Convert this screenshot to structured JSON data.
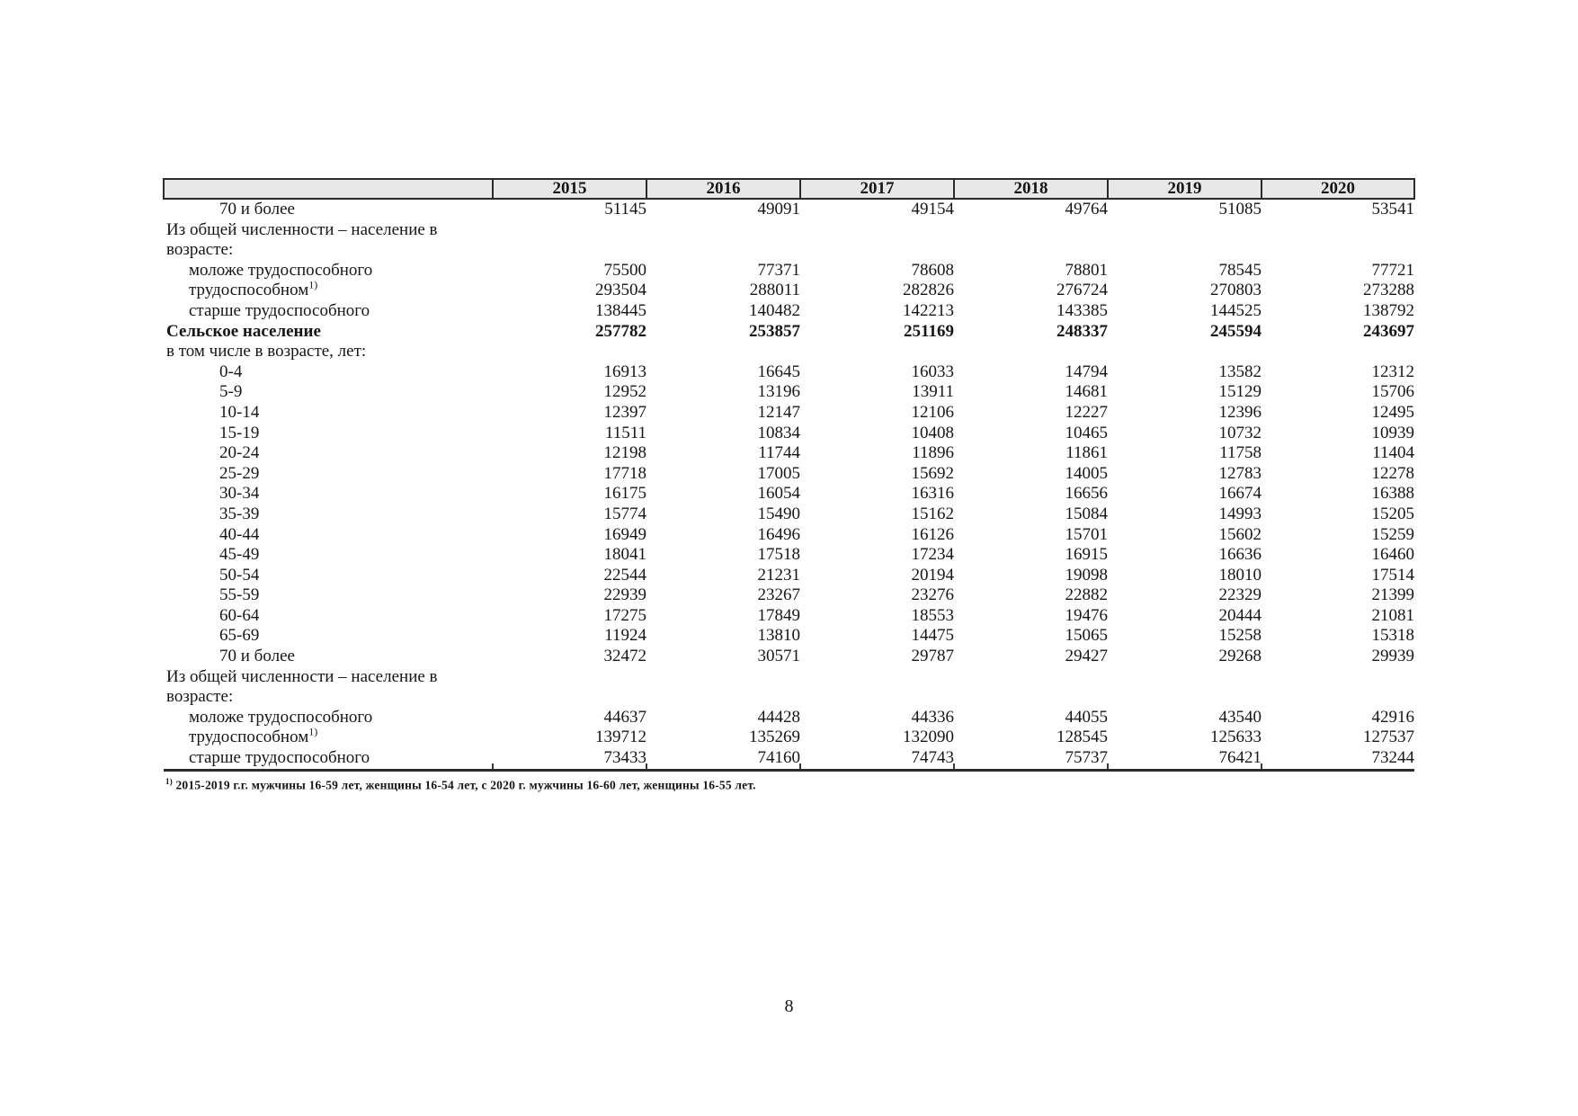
{
  "table": {
    "year_headers": [
      "2015",
      "2016",
      "2017",
      "2018",
      "2019",
      "2020"
    ],
    "rows": [
      {
        "label": "70 и более",
        "indent": 3,
        "bold": false,
        "sup": "",
        "values": [
          "51145",
          "49091",
          "49154",
          "49764",
          "51085",
          "53541"
        ]
      },
      {
        "label": "Из общей численности – население в",
        "indent": 1,
        "bold": false,
        "sup": "",
        "values": []
      },
      {
        "label": "возрасте:",
        "indent": 1,
        "bold": false,
        "sup": "",
        "values": []
      },
      {
        "label": "моложе трудоспособного",
        "indent": 2,
        "bold": false,
        "sup": "",
        "values": [
          "75500",
          "77371",
          "78608",
          "78801",
          "78545",
          "77721"
        ]
      },
      {
        "label": "трудоспособном",
        "indent": 2,
        "bold": false,
        "sup": "1)",
        "values": [
          "293504",
          "288011",
          "282826",
          "276724",
          "270803",
          "273288"
        ]
      },
      {
        "label": "старше трудоспособного",
        "indent": 2,
        "bold": false,
        "sup": "",
        "values": [
          "138445",
          "140482",
          "142213",
          "143385",
          "144525",
          "138792"
        ]
      },
      {
        "label": "Сельское население",
        "indent": 1,
        "bold": true,
        "sup": "",
        "values": [
          "257782",
          "253857",
          "251169",
          "248337",
          "245594",
          "243697"
        ]
      },
      {
        "label": "в том числе в возрасте, лет:",
        "indent": 1,
        "bold": false,
        "sup": "",
        "values": []
      },
      {
        "label": "0-4",
        "indent": 3,
        "bold": false,
        "sup": "",
        "values": [
          "16913",
          "16645",
          "16033",
          "14794",
          "13582",
          "12312"
        ]
      },
      {
        "label": "5-9",
        "indent": 3,
        "bold": false,
        "sup": "",
        "values": [
          "12952",
          "13196",
          "13911",
          "14681",
          "15129",
          "15706"
        ]
      },
      {
        "label": "10-14",
        "indent": 3,
        "bold": false,
        "sup": "",
        "values": [
          "12397",
          "12147",
          "12106",
          "12227",
          "12396",
          "12495"
        ]
      },
      {
        "label": "15-19",
        "indent": 3,
        "bold": false,
        "sup": "",
        "values": [
          "11511",
          "10834",
          "10408",
          "10465",
          "10732",
          "10939"
        ]
      },
      {
        "label": "20-24",
        "indent": 3,
        "bold": false,
        "sup": "",
        "values": [
          "12198",
          "11744",
          "11896",
          "11861",
          "11758",
          "11404"
        ]
      },
      {
        "label": "25-29",
        "indent": 3,
        "bold": false,
        "sup": "",
        "values": [
          "17718",
          "17005",
          "15692",
          "14005",
          "12783",
          "12278"
        ]
      },
      {
        "label": "30-34",
        "indent": 3,
        "bold": false,
        "sup": "",
        "values": [
          "16175",
          "16054",
          "16316",
          "16656",
          "16674",
          "16388"
        ]
      },
      {
        "label": "35-39",
        "indent": 3,
        "bold": false,
        "sup": "",
        "values": [
          "15774",
          "15490",
          "15162",
          "15084",
          "14993",
          "15205"
        ]
      },
      {
        "label": "40-44",
        "indent": 3,
        "bold": false,
        "sup": "",
        "values": [
          "16949",
          "16496",
          "16126",
          "15701",
          "15602",
          "15259"
        ]
      },
      {
        "label": "45-49",
        "indent": 3,
        "bold": false,
        "sup": "",
        "values": [
          "18041",
          "17518",
          "17234",
          "16915",
          "16636",
          "16460"
        ]
      },
      {
        "label": "50-54",
        "indent": 3,
        "bold": false,
        "sup": "",
        "values": [
          "22544",
          "21231",
          "20194",
          "19098",
          "18010",
          "17514"
        ]
      },
      {
        "label": "55-59",
        "indent": 3,
        "bold": false,
        "sup": "",
        "values": [
          "22939",
          "23267",
          "23276",
          "22882",
          "22329",
          "21399"
        ]
      },
      {
        "label": "60-64",
        "indent": 3,
        "bold": false,
        "sup": "",
        "values": [
          "17275",
          "17849",
          "18553",
          "19476",
          "20444",
          "21081"
        ]
      },
      {
        "label": "65-69",
        "indent": 3,
        "bold": false,
        "sup": "",
        "values": [
          "11924",
          "13810",
          "14475",
          "15065",
          "15258",
          "15318"
        ]
      },
      {
        "label": "70 и более",
        "indent": 3,
        "bold": false,
        "sup": "",
        "values": [
          "32472",
          "30571",
          "29787",
          "29427",
          "29268",
          "29939"
        ]
      },
      {
        "label": "Из общей численности – население в",
        "indent": 1,
        "bold": false,
        "sup": "",
        "values": []
      },
      {
        "label": "возрасте:",
        "indent": 1,
        "bold": false,
        "sup": "",
        "values": []
      },
      {
        "label": "моложе трудоспособного",
        "indent": 2,
        "bold": false,
        "sup": "",
        "values": [
          "44637",
          "44428",
          "44336",
          "44055",
          "43540",
          "42916"
        ]
      },
      {
        "label": "трудоспособном",
        "indent": 2,
        "bold": false,
        "sup": "1)",
        "values": [
          "139712",
          "135269",
          "132090",
          "128545",
          "125633",
          "127537"
        ]
      },
      {
        "label": "старше трудоспособного",
        "indent": 2,
        "bold": false,
        "sup": "",
        "values": [
          "73433",
          "74160",
          "74743",
          "75737",
          "76421",
          "73244"
        ]
      }
    ]
  },
  "footnote": {
    "marker": "1)",
    "text": "2015-2019  г.г. мужчины 16-59 лет, женщины 16-54 лет, с 2020 г. мужчины 16-60 лет, женщины 16-55 лет."
  },
  "page": {
    "number": "8"
  }
}
